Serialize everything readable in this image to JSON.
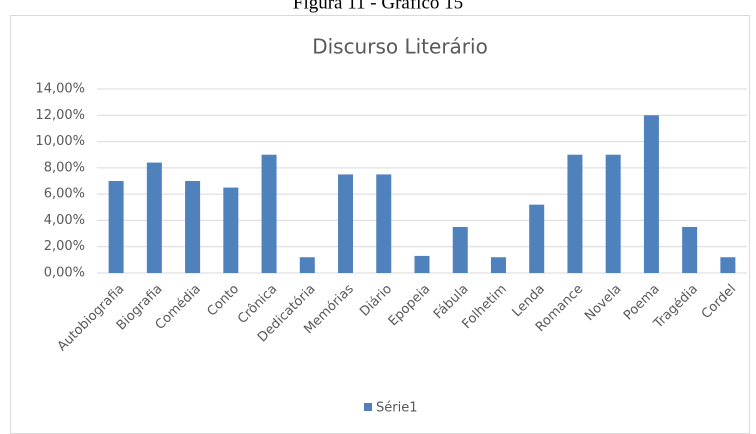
{
  "caption": "Figura 11 - Gráfico 15",
  "chart_data": {
    "type": "bar",
    "title": "Discurso Literário",
    "categories": [
      "Autobiografia",
      "Biografia",
      "Comédia",
      "Conto",
      "Crônica",
      "Dedicatória",
      "Memórias",
      "Diário",
      "Epopeia",
      "Fábula",
      "Folhetim",
      "Lenda",
      "Romance",
      "Novela",
      "Poema",
      "Tragédia",
      "Cordel"
    ],
    "series": [
      {
        "name": "Série1",
        "color": "#4f81bd",
        "values": [
          7.0,
          8.4,
          7.0,
          6.5,
          9.0,
          1.2,
          7.5,
          7.5,
          1.3,
          3.5,
          1.2,
          5.2,
          9.0,
          9.0,
          12.0,
          3.5,
          1.2
        ]
      }
    ],
    "ylim": [
      0,
      14
    ],
    "yticks": [
      {
        "value": 0,
        "label": "0,00%"
      },
      {
        "value": 2,
        "label": "2,00%"
      },
      {
        "value": 4,
        "label": "4,00%"
      },
      {
        "value": 6,
        "label": "6,00%"
      },
      {
        "value": 8,
        "label": "8,00%"
      },
      {
        "value": 10,
        "label": "10,00%"
      },
      {
        "value": 12,
        "label": "12,00%"
      },
      {
        "value": 14,
        "label": "14,00%"
      }
    ],
    "grid": true,
    "legend": "bottom"
  }
}
